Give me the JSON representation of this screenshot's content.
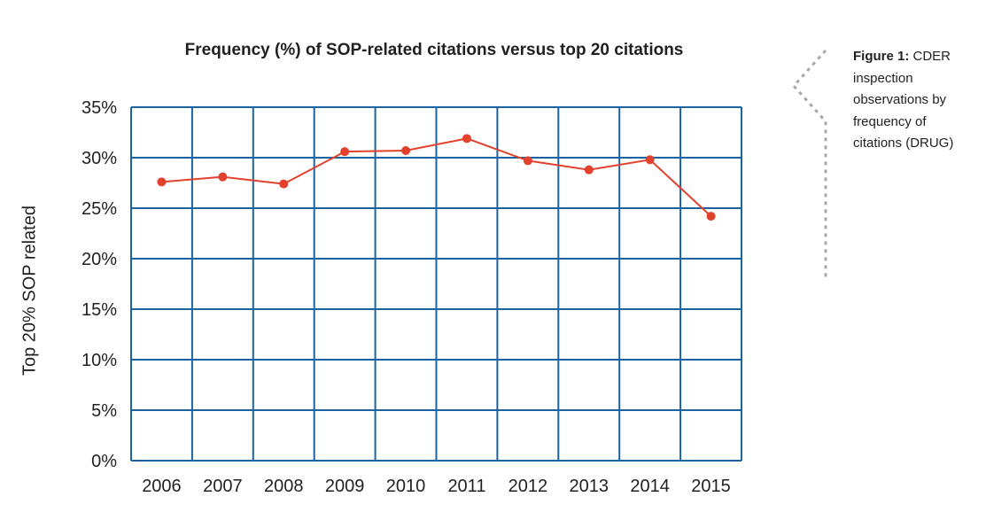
{
  "caption": {
    "label": "Figure 1:",
    "text": "CDER inspection observations by frequency of citations (DRUG)"
  },
  "chart_data": {
    "type": "line",
    "title": "Frequency (%) of SOP-related citations versus top 20 citations",
    "xlabel": "",
    "ylabel": "Top 20% SOP related",
    "categories": [
      "2006",
      "2007",
      "2008",
      "2009",
      "2010",
      "2011",
      "2012",
      "2013",
      "2014",
      "2015"
    ],
    "series": [
      {
        "values": [
          27.6,
          28.1,
          27.4,
          30.6,
          30.7,
          31.9,
          29.7,
          28.8,
          29.8,
          24.2
        ]
      }
    ],
    "ylim": [
      0,
      35
    ],
    "yticks": [
      "0%",
      "5%",
      "10%",
      "15%",
      "20%",
      "25%",
      "30%",
      "35%"
    ],
    "grid": true,
    "colors": {
      "line": "#e2412d",
      "grid": "#1a63a0",
      "text": "#231f20"
    }
  }
}
